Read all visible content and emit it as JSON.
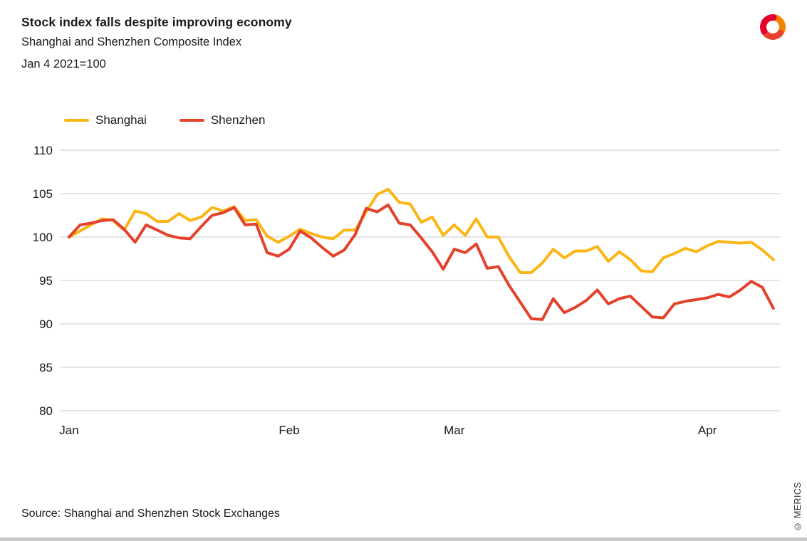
{
  "header": {
    "title": "Stock index falls despite improving economy",
    "subtitle": "Shanghai and Shenzhen Composite Index",
    "index_note": "Jan 4 2021=100"
  },
  "legend": [
    {
      "label": "Shanghai",
      "color": "#FBB616"
    },
    {
      "label": "Shenzhen",
      "color": "#E3422D"
    }
  ],
  "chart_data": {
    "type": "line",
    "title": "Stock index falls despite improving economy",
    "subtitle": "Shanghai and Shenzhen Composite Index",
    "x_unit": "trading days, Jan 4 to mid-April 2021",
    "x_tick_labels": [
      "Jan",
      "Feb",
      "Mar",
      "Apr"
    ],
    "x_tick_indices": [
      0,
      20,
      35,
      58
    ],
    "y_ticks": [
      80,
      85,
      90,
      95,
      100,
      105,
      110
    ],
    "ylim": [
      80,
      110
    ],
    "grid": "horizontal",
    "legend_position": "top-left",
    "series": [
      {
        "name": "Shanghai",
        "color": "#FBB616",
        "values": [
          100.0,
          100.7,
          101.4,
          102.1,
          101.9,
          100.8,
          103.0,
          102.7,
          101.8,
          101.8,
          102.7,
          101.9,
          102.3,
          103.4,
          103.0,
          103.5,
          101.9,
          102.0,
          100.1,
          99.4,
          100.1,
          100.9,
          100.4,
          100.0,
          99.8,
          100.8,
          100.8,
          102.9,
          104.9,
          105.5,
          104.0,
          103.8,
          101.7,
          102.3,
          100.2,
          101.4,
          100.2,
          102.1,
          100.0,
          100.0,
          97.7,
          95.9,
          95.9,
          97.0,
          98.6,
          97.6,
          98.4,
          98.4,
          98.9,
          97.2,
          98.3,
          97.4,
          96.1,
          96.0,
          97.6,
          98.1,
          98.7,
          98.3,
          99.0,
          99.5,
          99.4,
          99.3,
          99.4,
          98.5,
          97.4
        ]
      },
      {
        "name": "Shenzhen",
        "color": "#E3422D",
        "values": [
          100.0,
          101.4,
          101.6,
          101.9,
          102.0,
          100.9,
          99.4,
          101.4,
          100.8,
          100.2,
          99.9,
          99.8,
          101.2,
          102.5,
          102.8,
          103.4,
          101.4,
          101.5,
          98.2,
          97.8,
          98.6,
          100.7,
          99.9,
          98.8,
          97.8,
          98.5,
          100.3,
          103.3,
          102.9,
          103.7,
          101.6,
          101.4,
          99.9,
          98.3,
          96.3,
          98.6,
          98.2,
          99.2,
          96.4,
          96.6,
          94.4,
          92.5,
          90.6,
          90.5,
          92.9,
          91.3,
          91.9,
          92.7,
          93.9,
          92.3,
          92.9,
          93.2,
          92.0,
          90.8,
          90.7,
          92.3,
          92.6,
          92.8,
          93.0,
          93.4,
          93.1,
          93.9,
          94.9,
          94.2,
          91.8
        ]
      }
    ]
  },
  "footer": {
    "source": "Source: Shanghai and Shenzhen Stock Exchanges",
    "copyright": "© MERICS"
  }
}
